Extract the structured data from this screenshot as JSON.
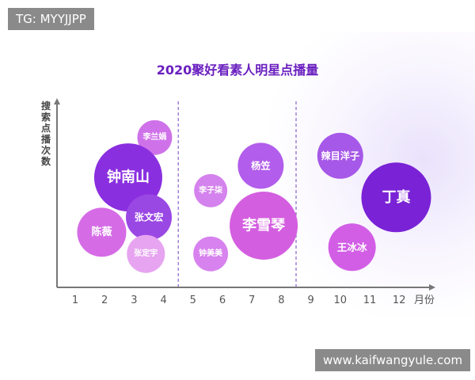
{
  "watermark_top": "TG: MYYJJPP",
  "watermark_bottom": "www.kaifwangyule.com",
  "chart_data": {
    "type": "bubble",
    "title": "2020聚好看素人明星点播量",
    "ylabel": "搜索点播次数",
    "xlabel": "月份",
    "categories": [
      "1",
      "2",
      "3",
      "4",
      "5",
      "6",
      "7",
      "8",
      "9",
      "10",
      "11",
      "12"
    ],
    "separators_after_month": [
      4,
      8
    ],
    "points": [
      {
        "name": "李兰娟",
        "x": 3.7,
        "y": 0.83,
        "size": 22,
        "color": "#cf72ea"
      },
      {
        "name": "钟南山",
        "x": 2.8,
        "y": 0.59,
        "size": 43,
        "color": "#8a2fe0"
      },
      {
        "name": "陈薇",
        "x": 1.9,
        "y": 0.26,
        "size": 31,
        "color": "#d56ce6"
      },
      {
        "name": "张文宏",
        "x": 3.5,
        "y": 0.35,
        "size": 29,
        "color": "#9a48e4"
      },
      {
        "name": "张定宇",
        "x": 3.4,
        "y": 0.13,
        "size": 24,
        "color": "#e7a4f0"
      },
      {
        "name": "李子柒",
        "x": 5.6,
        "y": 0.51,
        "size": 21,
        "color": "#d482ed"
      },
      {
        "name": "钟美美",
        "x": 5.6,
        "y": 0.13,
        "size": 22,
        "color": "#d782ee"
      },
      {
        "name": "杨笠",
        "x": 7.3,
        "y": 0.66,
        "size": 29,
        "color": "#b25deb"
      },
      {
        "name": "李雪琴",
        "x": 7.4,
        "y": 0.3,
        "size": 43,
        "color": "#d45ee0"
      },
      {
        "name": "辣目洋子",
        "x": 10.0,
        "y": 0.72,
        "size": 29,
        "color": "#a658e8"
      },
      {
        "name": "丁真",
        "x": 11.9,
        "y": 0.47,
        "size": 44,
        "color": "#7a22d6"
      },
      {
        "name": "王冰冰",
        "x": 10.4,
        "y": 0.17,
        "size": 30,
        "color": "#d25ee6"
      }
    ]
  }
}
